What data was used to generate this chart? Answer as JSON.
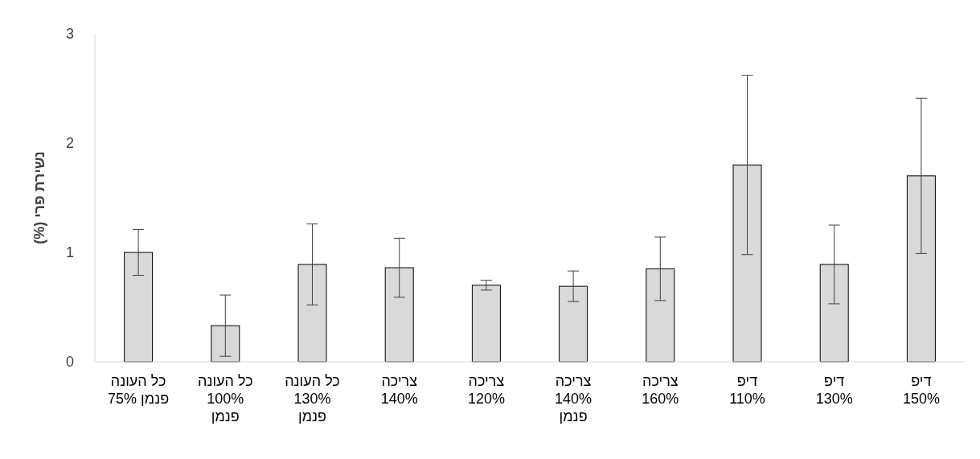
{
  "chart_data": {
    "type": "bar",
    "ylabel": "נשירת פרי (%)",
    "categories": [
      "כל העונה\nפנמן 75%",
      "כל העונה\n100%\nפנמן",
      "כל העונה\n130%\nפנמן",
      "צריכה\n140%",
      "צריכה\n120%",
      "צריכה\n140%\nפנמן",
      "צריכה\n160%",
      "דיפ\n110%",
      "דיפ\n130%",
      "דיפ\n150%"
    ],
    "values": [
      1.0,
      0.33,
      0.89,
      0.86,
      0.7,
      0.69,
      0.85,
      1.8,
      0.89,
      1.7
    ],
    "errors": [
      0.21,
      0.28,
      0.37,
      0.27,
      0.045,
      0.14,
      0.29,
      0.82,
      0.36,
      0.71
    ],
    "color": "#d9d9d9",
    "ylim": [
      0,
      3
    ],
    "yticks": [
      0,
      1,
      2,
      3
    ]
  }
}
